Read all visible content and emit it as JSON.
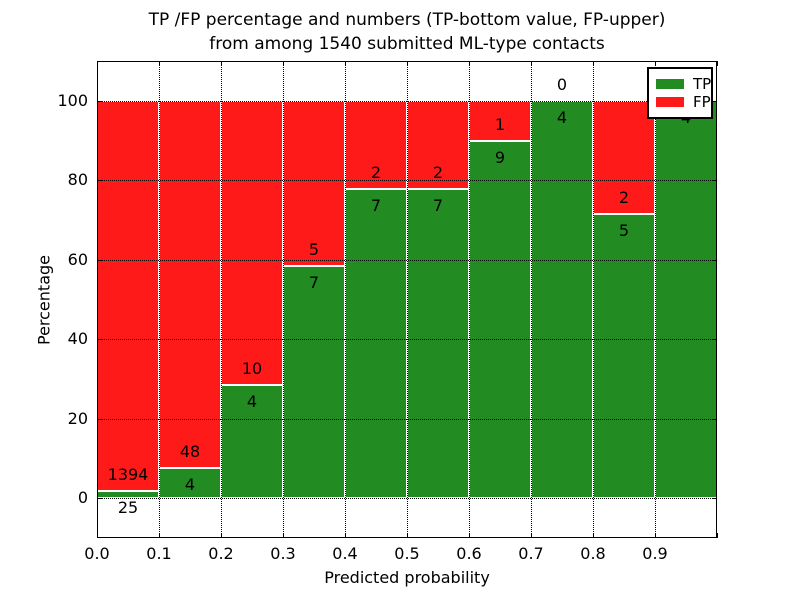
{
  "chart_data": {
    "type": "bar",
    "stacked": true,
    "title_line1": "TP /FP percentage and numbers (TP-bottom value, FP-upper)",
    "title_line2": "from among 1540 submitted ML-type contacts",
    "xlabel": "Predicted probability",
    "ylabel": "Percentage",
    "total_contacts": 1540,
    "bins": [
      "0.0-0.1",
      "0.1-0.2",
      "0.2-0.3",
      "0.3-0.4",
      "0.4-0.5",
      "0.5-0.6",
      "0.6-0.7",
      "0.7-0.8",
      "0.8-0.9",
      "0.9-1.0"
    ],
    "x_tick_labels": [
      "0.0",
      "0.1",
      "0.2",
      "0.3",
      "0.4",
      "0.5",
      "0.6",
      "0.7",
      "0.8",
      "0.9"
    ],
    "y_ticks": [
      0,
      20,
      40,
      60,
      80,
      100
    ],
    "y_tick_labels": [
      "0",
      "20",
      "40",
      "60",
      "80",
      "100"
    ],
    "ylim": [
      -10,
      110
    ],
    "xlim": [
      0.0,
      1.0
    ],
    "grid": "dotted",
    "legend_position": "upper right",
    "legend": [
      {
        "name": "TP",
        "color": "#228b22"
      },
      {
        "name": "FP",
        "color": "#ff1a1a"
      }
    ],
    "series": [
      {
        "name": "TP",
        "color": "#228b22",
        "counts": [
          25,
          4,
          4,
          7,
          7,
          7,
          9,
          4,
          5,
          4
        ]
      },
      {
        "name": "FP",
        "color": "#ff1a1a",
        "counts": [
          1394,
          48,
          10,
          5,
          2,
          2,
          1,
          0,
          2,
          0
        ]
      },
      {
        "name": "TP_percent_of_bin",
        "values": [
          1.76,
          7.69,
          28.57,
          58.33,
          77.78,
          77.78,
          90.0,
          100.0,
          71.43,
          100.0
        ]
      }
    ],
    "annotation_note": "FP count above green/red boundary, TP count below it; last FP 0 hidden behind legend",
    "colors": {
      "tp": "#228b22",
      "fp": "#ff1a1a",
      "text": "#000000",
      "background": "#ffffff",
      "grid": "#000000",
      "bar_edge": "#ffffff"
    }
  }
}
